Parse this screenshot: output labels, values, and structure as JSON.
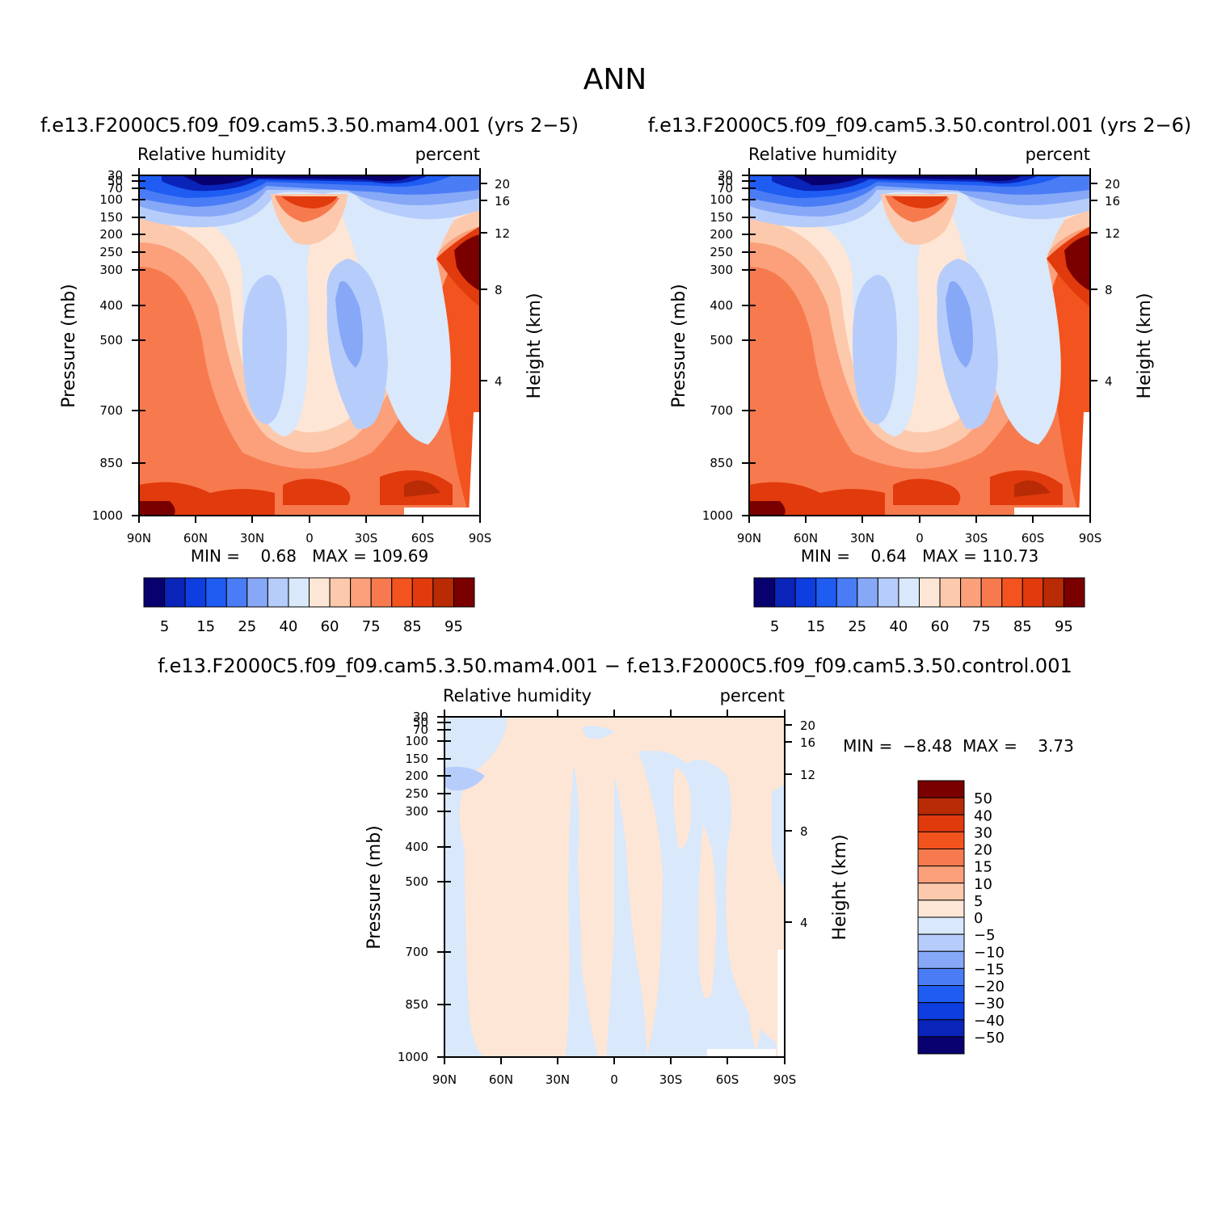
{
  "figure": {
    "title": "ANN"
  },
  "panels": [
    {
      "id": "case1",
      "subtitle": "f.e13.F2000C5.f09_f09.cam5.3.50.mam4.001 (yrs 2−5)",
      "left_label": "Relative humidity",
      "right_label": "percent",
      "ylabel": "Pressure (mb)",
      "ylabel_right": "Height (km)",
      "stats": "MIN =    0.68   MAX = 109.69"
    },
    {
      "id": "case2",
      "subtitle": "f.e13.F2000C5.f09_f09.cam5.3.50.control.001 (yrs 2−6)",
      "left_label": "Relative humidity",
      "right_label": "percent",
      "ylabel": "Pressure (mb)",
      "ylabel_right": "Height (km)",
      "stats": "MIN =    0.64   MAX = 110.73"
    },
    {
      "id": "diff",
      "subtitle": "f.e13.F2000C5.f09_f09.cam5.3.50.mam4.001 − f.e13.F2000C5.f09_f09.cam5.3.50.control.001",
      "left_label": "Relative humidity",
      "right_label": "percent",
      "ylabel": "Pressure (mb)",
      "ylabel_right": "Height (km)",
      "stats": "MIN =  −8.48  MAX =    3.73"
    }
  ],
  "chart_data": [
    {
      "type": "heatmap",
      "panel": "case1",
      "title": "f.e13.F2000C5.f09_f09.cam5.3.50.mam4.001 (yrs 2−5)",
      "variable": "Relative humidity",
      "units": "percent",
      "xlabel": "",
      "ylabel": "Pressure (mb)",
      "y_right_label": "Height (km)",
      "x_ticks": [
        "90N",
        "60N",
        "30N",
        "0",
        "30S",
        "60S",
        "90S"
      ],
      "y_ticks": [
        30,
        50,
        70,
        100,
        150,
        200,
        250,
        300,
        400,
        500,
        700,
        850,
        1000
      ],
      "y_right_ticks": [
        20,
        16,
        12,
        8,
        4
      ],
      "y_scale": "log",
      "min": 0.68,
      "max": 109.69,
      "levels": [
        5,
        10,
        15,
        20,
        25,
        30,
        40,
        50,
        60,
        70,
        75,
        80,
        85,
        90,
        95
      ],
      "colorbar_tick_labels": [
        "5",
        "15",
        "25",
        "40",
        "60",
        "75",
        "85",
        "95"
      ],
      "colorbar_orientation": "horizontal"
    },
    {
      "type": "heatmap",
      "panel": "case2",
      "title": "f.e13.F2000C5.f09_f09.cam5.3.50.control.001 (yrs 2−6)",
      "variable": "Relative humidity",
      "units": "percent",
      "xlabel": "",
      "ylabel": "Pressure (mb)",
      "y_right_label": "Height (km)",
      "x_ticks": [
        "90N",
        "60N",
        "30N",
        "0",
        "30S",
        "60S",
        "90S"
      ],
      "y_ticks": [
        30,
        50,
        70,
        100,
        150,
        200,
        250,
        300,
        400,
        500,
        700,
        850,
        1000
      ],
      "y_right_ticks": [
        20,
        16,
        12,
        8,
        4
      ],
      "y_scale": "log",
      "min": 0.64,
      "max": 110.73,
      "levels": [
        5,
        10,
        15,
        20,
        25,
        30,
        40,
        50,
        60,
        70,
        75,
        80,
        85,
        90,
        95
      ],
      "colorbar_tick_labels": [
        "5",
        "15",
        "25",
        "40",
        "60",
        "75",
        "85",
        "95"
      ],
      "colorbar_orientation": "horizontal"
    },
    {
      "type": "heatmap",
      "panel": "diff",
      "title": "f.e13.F2000C5.f09_f09.cam5.3.50.mam4.001 − f.e13.F2000C5.f09_f09.cam5.3.50.control.001",
      "variable": "Relative humidity",
      "units": "percent",
      "xlabel": "",
      "ylabel": "Pressure (mb)",
      "y_right_label": "Height (km)",
      "x_ticks": [
        "90N",
        "60N",
        "30N",
        "0",
        "30S",
        "60S",
        "90S"
      ],
      "y_ticks": [
        30,
        50,
        70,
        100,
        150,
        200,
        250,
        300,
        400,
        500,
        700,
        850,
        1000
      ],
      "y_right_ticks": [
        20,
        16,
        12,
        8,
        4
      ],
      "y_scale": "log",
      "min": -8.48,
      "max": 3.73,
      "levels": [
        -50,
        -40,
        -30,
        -20,
        -15,
        -10,
        -5,
        0,
        5,
        10,
        15,
        20,
        30,
        40,
        50
      ],
      "colorbar_tick_labels": [
        "50",
        "40",
        "30",
        "20",
        "15",
        "10",
        "5",
        "0",
        "−5",
        "−10",
        "−15",
        "−20",
        "−30",
        "−40",
        "−50"
      ],
      "colorbar_orientation": "vertical"
    }
  ],
  "colors": {
    "rh_palette": [
      "#08006f",
      "#0a23b8",
      "#0e3de0",
      "#1e5cf2",
      "#4a7df5",
      "#86a8f7",
      "#b6ccfb",
      "#d9e8fb",
      "#fde6d6",
      "#fcc9ac",
      "#fba07a",
      "#f77a4e",
      "#f2531f",
      "#e13a0c",
      "#b82b05",
      "#7a0000"
    ],
    "diff_palette": [
      "#7a0000",
      "#b82b05",
      "#e13a0c",
      "#f2531f",
      "#f77a4e",
      "#fba07a",
      "#fcc9ac",
      "#fde6d6",
      "#d9e8fb",
      "#b6ccfb",
      "#86a8f7",
      "#4a7df5",
      "#1e5cf2",
      "#0e3de0",
      "#0a23b8",
      "#08006f"
    ]
  }
}
